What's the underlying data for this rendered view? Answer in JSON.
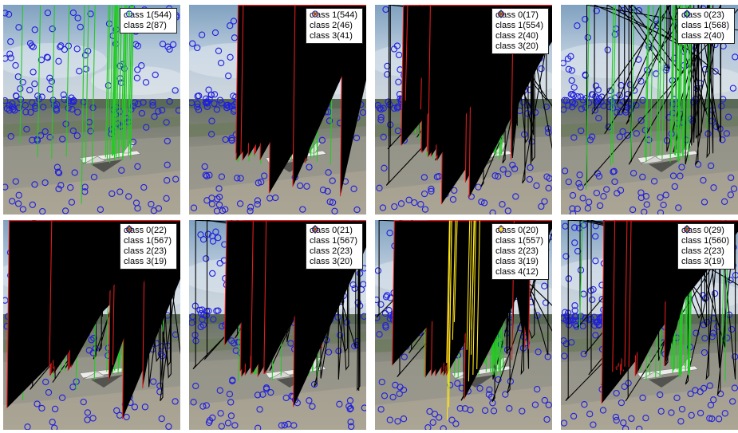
{
  "layout": {
    "rows": 2,
    "cols": 4
  },
  "colors": {
    "class 0": "#000000",
    "class 1": "#1f1fe0",
    "class 2": "#22cc22",
    "class 3": "#e01c1c",
    "class 4": "#ffe61a"
  },
  "markers": {
    "class 0": "diamond",
    "class 1": "circle",
    "class 2": "plus",
    "class 3": "x",
    "class 4": "star"
  },
  "chart_data": [
    {
      "type": "scatter",
      "panel": 1,
      "legend": [
        {
          "label": "class 1",
          "count": "544"
        },
        {
          "label": "class 2",
          "count": "87"
        }
      ]
    },
    {
      "type": "scatter",
      "panel": 2,
      "legend": [
        {
          "label": "class 1",
          "count": "544"
        },
        {
          "label": "class 2",
          "count": "46"
        },
        {
          "label": "class 3",
          "count": "41"
        }
      ]
    },
    {
      "type": "scatter",
      "panel": 3,
      "legend": [
        {
          "label": "class 0",
          "count": "17"
        },
        {
          "label": "class 1",
          "count": "554"
        },
        {
          "label": "class 2",
          "count": "40"
        },
        {
          "label": "class 3",
          "count": "20"
        }
      ]
    },
    {
      "type": "scatter",
      "panel": 4,
      "legend": [
        {
          "label": "class 0",
          "count": "23"
        },
        {
          "label": "class 1",
          "count": "568"
        },
        {
          "label": "class 2",
          "count": "40"
        }
      ]
    },
    {
      "type": "scatter",
      "panel": 5,
      "legend": [
        {
          "label": "class 0",
          "count": "22"
        },
        {
          "label": "class 1",
          "count": "567"
        },
        {
          "label": "class 2",
          "count": "23"
        },
        {
          "label": "class 3",
          "count": "19"
        }
      ]
    },
    {
      "type": "scatter",
      "panel": 6,
      "legend": [
        {
          "label": "class 0",
          "count": "21"
        },
        {
          "label": "class 1",
          "count": "567"
        },
        {
          "label": "class 2",
          "count": "23"
        },
        {
          "label": "class 3",
          "count": "20"
        }
      ]
    },
    {
      "type": "scatter",
      "panel": 7,
      "legend": [
        {
          "label": "class 0",
          "count": "20"
        },
        {
          "label": "class 1",
          "count": "557"
        },
        {
          "label": "class 2",
          "count": "23"
        },
        {
          "label": "class 3",
          "count": "19"
        },
        {
          "label": "class 4",
          "count": "12"
        }
      ]
    },
    {
      "type": "scatter",
      "panel": 8,
      "legend": [
        {
          "label": "class 0",
          "count": "29"
        },
        {
          "label": "class 1",
          "count": "560"
        },
        {
          "label": "class 2",
          "count": "23"
        },
        {
          "label": "class 3",
          "count": "19"
        }
      ]
    }
  ]
}
